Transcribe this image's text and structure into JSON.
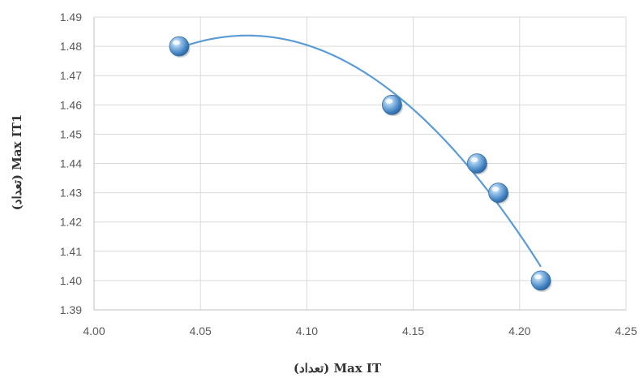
{
  "chart_data": {
    "type": "scatter",
    "xlabel": "(تعداد) Max  IT",
    "ylabel": "(تعداد) Max  IT1",
    "xlim": [
      4.0,
      4.25
    ],
    "ylim": [
      1.39,
      1.49
    ],
    "x_ticks": [
      "4.00",
      "4.05",
      "4.10",
      "4.15",
      "4.20",
      "4.25"
    ],
    "y_ticks": [
      "1.39",
      "1.40",
      "1.41",
      "1.42",
      "1.43",
      "1.44",
      "1.45",
      "1.46",
      "1.47",
      "1.48",
      "1.49"
    ],
    "grid": true,
    "trendline": "polynomial",
    "points": [
      {
        "x": 4.04,
        "y": 1.48
      },
      {
        "x": 4.14,
        "y": 1.46
      },
      {
        "x": 4.18,
        "y": 1.44
      },
      {
        "x": 4.19,
        "y": 1.43
      },
      {
        "x": 4.21,
        "y": 1.4
      }
    ],
    "colors": {
      "marker": "#5b9bd5",
      "trendline": "#5b9bd5",
      "gridline": "#d9d9d9",
      "axis": "#bfbfbf"
    }
  }
}
